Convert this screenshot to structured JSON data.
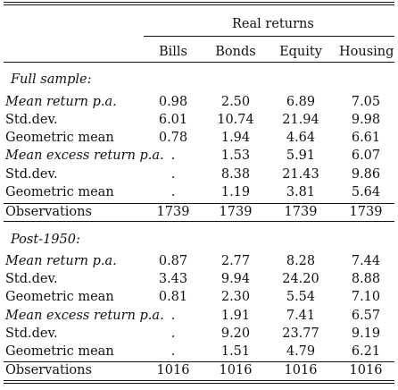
{
  "header": {
    "group": "Real returns",
    "columns": [
      "Bills",
      "Bonds",
      "Equity",
      "Housing"
    ]
  },
  "sections": [
    {
      "title": "Full sample:",
      "rows": [
        {
          "label": "Mean return p.a.",
          "italic": true,
          "values": [
            "0.98",
            "2.50",
            "6.89",
            "7.05"
          ]
        },
        {
          "label": "Std.dev.",
          "italic": false,
          "values": [
            "6.01",
            "10.74",
            "21.94",
            "9.98"
          ]
        },
        {
          "label": "Geometric mean",
          "italic": false,
          "values": [
            "0.78",
            "1.94",
            "4.64",
            "6.61"
          ]
        },
        {
          "label": "Mean excess return p.a.",
          "italic": true,
          "values": [
            ".",
            "1.53",
            "5.91",
            "6.07"
          ]
        },
        {
          "label": "Std.dev.",
          "italic": false,
          "values": [
            ".",
            "8.38",
            "21.43",
            "9.86"
          ]
        },
        {
          "label": "Geometric mean",
          "italic": false,
          "values": [
            ".",
            "1.19",
            "3.81",
            "5.64"
          ]
        }
      ],
      "observations": {
        "label": "Observations",
        "values": [
          "1739",
          "1739",
          "1739",
          "1739"
        ]
      }
    },
    {
      "title": "Post-1950:",
      "rows": [
        {
          "label": "Mean return p.a.",
          "italic": true,
          "values": [
            "0.87",
            "2.77",
            "8.28",
            "7.44"
          ]
        },
        {
          "label": "Std.dev.",
          "italic": false,
          "values": [
            "3.43",
            "9.94",
            "24.20",
            "8.88"
          ]
        },
        {
          "label": "Geometric mean",
          "italic": false,
          "values": [
            "0.81",
            "2.30",
            "5.54",
            "7.10"
          ]
        },
        {
          "label": "Mean excess return p.a.",
          "italic": true,
          "values": [
            ".",
            "1.91",
            "7.41",
            "6.57"
          ]
        },
        {
          "label": "Std.dev.",
          "italic": false,
          "values": [
            ".",
            "9.20",
            "23.77",
            "9.19"
          ]
        },
        {
          "label": "Geometric mean",
          "italic": false,
          "values": [
            ".",
            "1.51",
            "4.79",
            "6.21"
          ]
        }
      ],
      "observations": {
        "label": "Observations",
        "values": [
          "1016",
          "1016",
          "1016",
          "1016"
        ]
      }
    }
  ]
}
